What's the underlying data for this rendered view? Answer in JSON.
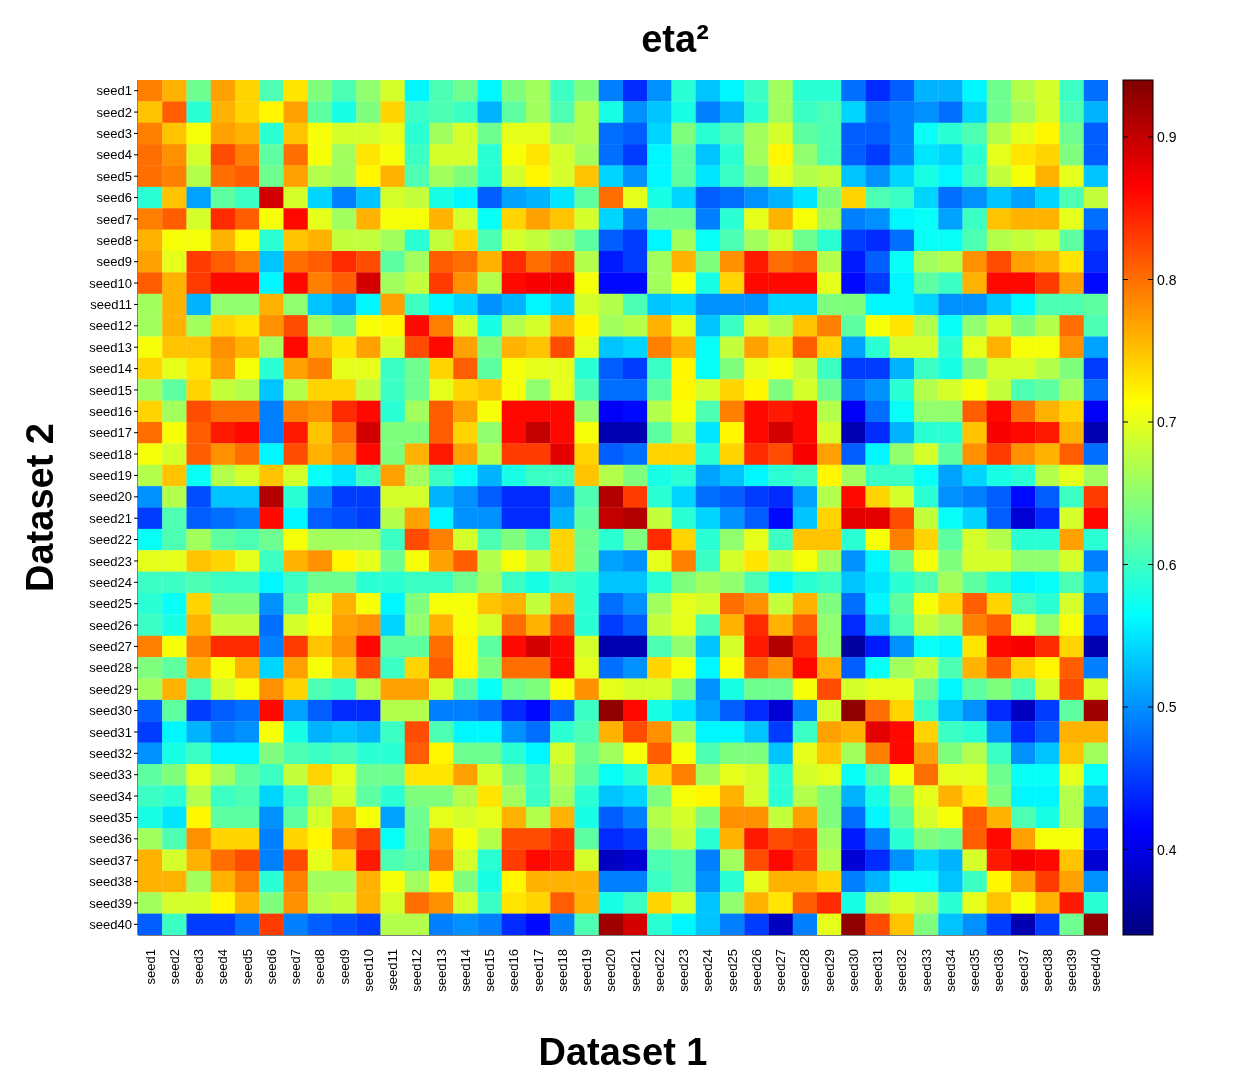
{
  "chart_data": {
    "type": "heatmap",
    "title": "eta²",
    "xlabel": "Dataset 1",
    "ylabel": "Dataset 2",
    "categories": [
      "seed1",
      "seed2",
      "seed3",
      "seed4",
      "seed5",
      "seed6",
      "seed7",
      "seed8",
      "seed9",
      "seed10",
      "seed11",
      "seed12",
      "seed13",
      "seed14",
      "seed15",
      "seed16",
      "seed17",
      "seed18",
      "seed19",
      "seed20",
      "seed21",
      "seed22",
      "seed23",
      "seed24",
      "seed25",
      "seed26",
      "seed27",
      "seed28",
      "seed29",
      "seed30",
      "seed31",
      "seed32",
      "seed33",
      "seed34",
      "seed35",
      "seed36",
      "seed37",
      "seed38",
      "seed39",
      "seed40"
    ],
    "y_categories": [
      "seed1",
      "seed2",
      "seed3",
      "seed4",
      "seed5",
      "seed6",
      "seed7",
      "seed8",
      "seed9",
      "seed10",
      "seed11",
      "seed12",
      "seed13",
      "seed14",
      "seed15",
      "seed16",
      "seed17",
      "seed18",
      "seed19",
      "seed20",
      "seed21",
      "seed22",
      "seed23",
      "seed24",
      "seed25",
      "seed26",
      "seed27",
      "seed28",
      "seed29",
      "seed30",
      "seed31",
      "seed32",
      "seed33",
      "seed34",
      "seed35",
      "seed36",
      "seed37",
      "seed38",
      "seed39",
      "seed40"
    ],
    "cells": [
      [
        0.79,
        0.76,
        0.63,
        0.77,
        0.74,
        0.61,
        0.73,
        0.64,
        0.61,
        0.65,
        0.69,
        0.56,
        0.61,
        0.63,
        0.56,
        0.64,
        0.66,
        0.6,
        0.64,
        0.49,
        0.44,
        0.5,
        0.59,
        0.53,
        0.56,
        0.6,
        0.66,
        0.59,
        0.59,
        0.48,
        0.44,
        0.47,
        0.52,
        0.52,
        0.56,
        0.63,
        0.67,
        0.69,
        0.6,
        0.48
      ],
      [
        0.75,
        0.81,
        0.59,
        0.76,
        0.74,
        0.72,
        0.77,
        0.62,
        0.58,
        0.64,
        0.74,
        0.6,
        0.61,
        0.6,
        0.52,
        0.62,
        0.66,
        0.61,
        0.67,
        0.58,
        0.5,
        0.53,
        0.58,
        0.49,
        0.52,
        0.59,
        0.66,
        0.6,
        0.61,
        0.54,
        0.48,
        0.49,
        0.5,
        0.48,
        0.54,
        0.63,
        0.66,
        0.69,
        0.61,
        0.52
      ],
      [
        0.79,
        0.75,
        0.71,
        0.77,
        0.76,
        0.59,
        0.75,
        0.71,
        0.69,
        0.69,
        0.7,
        0.59,
        0.66,
        0.69,
        0.63,
        0.7,
        0.7,
        0.66,
        0.67,
        0.48,
        0.47,
        0.54,
        0.64,
        0.59,
        0.61,
        0.66,
        0.69,
        0.62,
        0.61,
        0.47,
        0.47,
        0.49,
        0.57,
        0.59,
        0.61,
        0.67,
        0.7,
        0.72,
        0.63,
        0.47
      ],
      [
        0.8,
        0.78,
        0.69,
        0.82,
        0.79,
        0.62,
        0.8,
        0.71,
        0.66,
        0.73,
        0.71,
        0.6,
        0.69,
        0.69,
        0.59,
        0.71,
        0.73,
        0.69,
        0.66,
        0.48,
        0.45,
        0.56,
        0.62,
        0.53,
        0.59,
        0.66,
        0.72,
        0.65,
        0.61,
        0.47,
        0.45,
        0.49,
        0.55,
        0.54,
        0.59,
        0.7,
        0.73,
        0.74,
        0.64,
        0.47
      ],
      [
        0.8,
        0.79,
        0.67,
        0.8,
        0.81,
        0.63,
        0.77,
        0.67,
        0.66,
        0.72,
        0.76,
        0.61,
        0.66,
        0.64,
        0.59,
        0.69,
        0.72,
        0.69,
        0.75,
        0.54,
        0.5,
        0.56,
        0.62,
        0.55,
        0.6,
        0.64,
        0.7,
        0.67,
        0.68,
        0.53,
        0.5,
        0.54,
        0.58,
        0.56,
        0.6,
        0.68,
        0.71,
        0.76,
        0.7,
        0.53
      ],
      [
        0.59,
        0.75,
        0.51,
        0.62,
        0.6,
        0.89,
        0.69,
        0.54,
        0.49,
        0.53,
        0.69,
        0.68,
        0.58,
        0.56,
        0.47,
        0.51,
        0.52,
        0.55,
        0.62,
        0.8,
        0.7,
        0.58,
        0.54,
        0.47,
        0.48,
        0.5,
        0.52,
        0.55,
        0.64,
        0.74,
        0.61,
        0.6,
        0.54,
        0.48,
        0.5,
        0.53,
        0.51,
        0.54,
        0.61,
        0.68
      ],
      [
        0.79,
        0.81,
        0.69,
        0.84,
        0.81,
        0.71,
        0.86,
        0.7,
        0.66,
        0.76,
        0.71,
        0.71,
        0.76,
        0.69,
        0.57,
        0.74,
        0.77,
        0.75,
        0.69,
        0.54,
        0.49,
        0.63,
        0.63,
        0.49,
        0.59,
        0.7,
        0.76,
        0.71,
        0.66,
        0.49,
        0.5,
        0.56,
        0.57,
        0.51,
        0.6,
        0.75,
        0.76,
        0.76,
        0.7,
        0.48
      ],
      [
        0.76,
        0.71,
        0.71,
        0.76,
        0.72,
        0.59,
        0.75,
        0.76,
        0.68,
        0.68,
        0.66,
        0.59,
        0.68,
        0.74,
        0.61,
        0.69,
        0.68,
        0.66,
        0.62,
        0.47,
        0.45,
        0.56,
        0.66,
        0.57,
        0.61,
        0.66,
        0.69,
        0.63,
        0.59,
        0.45,
        0.44,
        0.48,
        0.57,
        0.57,
        0.61,
        0.67,
        0.68,
        0.69,
        0.62,
        0.45
      ],
      [
        0.77,
        0.7,
        0.83,
        0.81,
        0.79,
        0.53,
        0.8,
        0.81,
        0.84,
        0.82,
        0.62,
        0.66,
        0.81,
        0.8,
        0.76,
        0.84,
        0.8,
        0.82,
        0.67,
        0.43,
        0.45,
        0.66,
        0.76,
        0.64,
        0.78,
        0.85,
        0.8,
        0.81,
        0.67,
        0.43,
        0.47,
        0.57,
        0.66,
        0.67,
        0.78,
        0.82,
        0.77,
        0.76,
        0.73,
        0.44
      ],
      [
        0.81,
        0.76,
        0.83,
        0.86,
        0.86,
        0.56,
        0.86,
        0.79,
        0.81,
        0.89,
        0.66,
        0.68,
        0.83,
        0.78,
        0.67,
        0.86,
        0.87,
        0.87,
        0.71,
        0.42,
        0.42,
        0.66,
        0.71,
        0.58,
        0.74,
        0.86,
        0.86,
        0.86,
        0.7,
        0.42,
        0.45,
        0.56,
        0.62,
        0.6,
        0.76,
        0.86,
        0.86,
        0.83,
        0.77,
        0.42
      ],
      [
        0.66,
        0.76,
        0.52,
        0.65,
        0.65,
        0.76,
        0.65,
        0.53,
        0.51,
        0.56,
        0.77,
        0.6,
        0.56,
        0.54,
        0.5,
        0.52,
        0.56,
        0.54,
        0.69,
        0.67,
        0.61,
        0.53,
        0.54,
        0.5,
        0.5,
        0.5,
        0.54,
        0.54,
        0.64,
        0.64,
        0.56,
        0.56,
        0.54,
        0.5,
        0.5,
        0.53,
        0.56,
        0.61,
        0.61,
        0.62
      ],
      [
        0.66,
        0.76,
        0.66,
        0.74,
        0.73,
        0.78,
        0.82,
        0.66,
        0.64,
        0.71,
        0.72,
        0.86,
        0.79,
        0.69,
        0.58,
        0.67,
        0.69,
        0.76,
        0.72,
        0.66,
        0.67,
        0.76,
        0.7,
        0.53,
        0.6,
        0.69,
        0.67,
        0.75,
        0.79,
        0.62,
        0.71,
        0.73,
        0.67,
        0.57,
        0.65,
        0.69,
        0.64,
        0.67,
        0.8,
        0.61
      ],
      [
        0.71,
        0.75,
        0.75,
        0.78,
        0.76,
        0.66,
        0.86,
        0.76,
        0.73,
        0.77,
        0.69,
        0.82,
        0.86,
        0.77,
        0.64,
        0.76,
        0.75,
        0.82,
        0.7,
        0.53,
        0.54,
        0.79,
        0.76,
        0.57,
        0.68,
        0.77,
        0.74,
        0.81,
        0.74,
        0.51,
        0.59,
        0.69,
        0.69,
        0.59,
        0.7,
        0.76,
        0.71,
        0.71,
        0.78,
        0.51
      ],
      [
        0.74,
        0.7,
        0.73,
        0.77,
        0.71,
        0.59,
        0.77,
        0.79,
        0.7,
        0.7,
        0.6,
        0.63,
        0.74,
        0.81,
        0.62,
        0.71,
        0.7,
        0.7,
        0.59,
        0.47,
        0.45,
        0.6,
        0.72,
        0.57,
        0.64,
        0.7,
        0.71,
        0.68,
        0.6,
        0.45,
        0.45,
        0.52,
        0.6,
        0.58,
        0.64,
        0.69,
        0.69,
        0.67,
        0.64,
        0.45
      ],
      [
        0.66,
        0.62,
        0.74,
        0.68,
        0.67,
        0.53,
        0.67,
        0.74,
        0.74,
        0.68,
        0.6,
        0.63,
        0.7,
        0.74,
        0.75,
        0.71,
        0.65,
        0.7,
        0.61,
        0.48,
        0.48,
        0.62,
        0.72,
        0.69,
        0.74,
        0.72,
        0.64,
        0.69,
        0.63,
        0.48,
        0.5,
        0.59,
        0.67,
        0.69,
        0.71,
        0.68,
        0.61,
        0.62,
        0.66,
        0.48
      ],
      [
        0.74,
        0.66,
        0.82,
        0.8,
        0.8,
        0.49,
        0.79,
        0.78,
        0.84,
        0.86,
        0.59,
        0.66,
        0.81,
        0.77,
        0.71,
        0.86,
        0.86,
        0.86,
        0.65,
        0.41,
        0.42,
        0.67,
        0.71,
        0.61,
        0.79,
        0.86,
        0.85,
        0.86,
        0.67,
        0.41,
        0.48,
        0.57,
        0.65,
        0.65,
        0.81,
        0.86,
        0.8,
        0.76,
        0.74,
        0.41
      ],
      [
        0.8,
        0.71,
        0.81,
        0.85,
        0.86,
        0.49,
        0.85,
        0.75,
        0.8,
        0.89,
        0.64,
        0.64,
        0.81,
        0.74,
        0.65,
        0.86,
        0.9,
        0.86,
        0.71,
        0.37,
        0.37,
        0.62,
        0.68,
        0.55,
        0.72,
        0.86,
        0.89,
        0.86,
        0.69,
        0.37,
        0.44,
        0.52,
        0.59,
        0.59,
        0.75,
        0.87,
        0.86,
        0.85,
        0.76,
        0.37
      ],
      [
        0.71,
        0.69,
        0.81,
        0.78,
        0.8,
        0.56,
        0.82,
        0.76,
        0.78,
        0.86,
        0.64,
        0.76,
        0.85,
        0.77,
        0.67,
        0.83,
        0.83,
        0.88,
        0.74,
        0.47,
        0.48,
        0.74,
        0.74,
        0.59,
        0.74,
        0.84,
        0.82,
        0.87,
        0.77,
        0.47,
        0.56,
        0.65,
        0.69,
        0.62,
        0.78,
        0.83,
        0.78,
        0.76,
        0.81,
        0.48
      ],
      [
        0.67,
        0.75,
        0.57,
        0.67,
        0.69,
        0.75,
        0.69,
        0.57,
        0.55,
        0.6,
        0.77,
        0.66,
        0.6,
        0.57,
        0.52,
        0.58,
        0.6,
        0.6,
        0.75,
        0.67,
        0.64,
        0.58,
        0.59,
        0.51,
        0.53,
        0.56,
        0.59,
        0.6,
        0.72,
        0.66,
        0.6,
        0.6,
        0.57,
        0.51,
        0.54,
        0.58,
        0.59,
        0.67,
        0.7,
        0.66
      ],
      [
        0.5,
        0.67,
        0.46,
        0.53,
        0.53,
        0.91,
        0.59,
        0.49,
        0.45,
        0.45,
        0.69,
        0.69,
        0.52,
        0.5,
        0.47,
        0.44,
        0.44,
        0.5,
        0.61,
        0.91,
        0.83,
        0.59,
        0.54,
        0.48,
        0.47,
        0.45,
        0.44,
        0.51,
        0.67,
        0.86,
        0.74,
        0.69,
        0.59,
        0.5,
        0.49,
        0.47,
        0.42,
        0.47,
        0.6,
        0.83
      ],
      [
        0.45,
        0.61,
        0.47,
        0.48,
        0.49,
        0.86,
        0.56,
        0.47,
        0.46,
        0.45,
        0.67,
        0.77,
        0.56,
        0.5,
        0.5,
        0.44,
        0.44,
        0.52,
        0.62,
        0.9,
        0.91,
        0.68,
        0.59,
        0.54,
        0.5,
        0.47,
        0.42,
        0.53,
        0.74,
        0.88,
        0.88,
        0.82,
        0.68,
        0.57,
        0.54,
        0.47,
        0.39,
        0.44,
        0.69,
        0.86
      ],
      [
        0.57,
        0.61,
        0.66,
        0.62,
        0.61,
        0.63,
        0.71,
        0.66,
        0.66,
        0.66,
        0.6,
        0.82,
        0.79,
        0.69,
        0.61,
        0.64,
        0.61,
        0.74,
        0.63,
        0.59,
        0.64,
        0.84,
        0.74,
        0.59,
        0.65,
        0.7,
        0.6,
        0.75,
        0.75,
        0.59,
        0.71,
        0.79,
        0.74,
        0.62,
        0.69,
        0.67,
        0.59,
        0.59,
        0.77,
        0.59
      ],
      [
        0.7,
        0.7,
        0.75,
        0.74,
        0.7,
        0.6,
        0.76,
        0.78,
        0.72,
        0.7,
        0.63,
        0.71,
        0.77,
        0.81,
        0.67,
        0.71,
        0.68,
        0.74,
        0.63,
        0.51,
        0.5,
        0.7,
        0.79,
        0.6,
        0.69,
        0.73,
        0.68,
        0.71,
        0.66,
        0.5,
        0.56,
        0.63,
        0.71,
        0.64,
        0.69,
        0.69,
        0.65,
        0.65,
        0.69,
        0.49
      ],
      [
        0.6,
        0.6,
        0.61,
        0.6,
        0.6,
        0.56,
        0.6,
        0.63,
        0.63,
        0.59,
        0.59,
        0.6,
        0.6,
        0.63,
        0.66,
        0.6,
        0.58,
        0.6,
        0.59,
        0.53,
        0.53,
        0.59,
        0.64,
        0.66,
        0.65,
        0.61,
        0.56,
        0.59,
        0.6,
        0.53,
        0.55,
        0.59,
        0.61,
        0.66,
        0.62,
        0.59,
        0.56,
        0.57,
        0.61,
        0.53
      ],
      [
        0.59,
        0.57,
        0.74,
        0.64,
        0.64,
        0.5,
        0.62,
        0.7,
        0.76,
        0.71,
        0.56,
        0.64,
        0.71,
        0.71,
        0.75,
        0.76,
        0.68,
        0.76,
        0.59,
        0.48,
        0.5,
        0.66,
        0.7,
        0.69,
        0.8,
        0.78,
        0.68,
        0.76,
        0.64,
        0.48,
        0.56,
        0.62,
        0.71,
        0.74,
        0.81,
        0.74,
        0.61,
        0.59,
        0.69,
        0.48
      ],
      [
        0.6,
        0.58,
        0.76,
        0.68,
        0.68,
        0.48,
        0.69,
        0.71,
        0.77,
        0.78,
        0.54,
        0.65,
        0.76,
        0.71,
        0.69,
        0.8,
        0.76,
        0.82,
        0.59,
        0.45,
        0.47,
        0.68,
        0.7,
        0.61,
        0.76,
        0.84,
        0.76,
        0.81,
        0.65,
        0.44,
        0.53,
        0.61,
        0.68,
        0.66,
        0.79,
        0.81,
        0.7,
        0.65,
        0.71,
        0.45
      ],
      [
        0.79,
        0.71,
        0.79,
        0.84,
        0.84,
        0.49,
        0.83,
        0.75,
        0.78,
        0.86,
        0.62,
        0.62,
        0.8,
        0.72,
        0.62,
        0.86,
        0.89,
        0.86,
        0.69,
        0.37,
        0.37,
        0.61,
        0.65,
        0.53,
        0.69,
        0.85,
        0.91,
        0.84,
        0.65,
        0.36,
        0.43,
        0.5,
        0.57,
        0.56,
        0.73,
        0.86,
        0.87,
        0.84,
        0.74,
        0.37
      ],
      [
        0.64,
        0.62,
        0.76,
        0.71,
        0.76,
        0.54,
        0.77,
        0.71,
        0.75,
        0.82,
        0.6,
        0.74,
        0.81,
        0.72,
        0.64,
        0.8,
        0.8,
        0.86,
        0.7,
        0.48,
        0.5,
        0.74,
        0.71,
        0.56,
        0.71,
        0.81,
        0.78,
        0.86,
        0.76,
        0.47,
        0.57,
        0.66,
        0.68,
        0.61,
        0.76,
        0.81,
        0.74,
        0.72,
        0.81,
        0.49
      ],
      [
        0.66,
        0.76,
        0.61,
        0.69,
        0.71,
        0.78,
        0.74,
        0.61,
        0.6,
        0.67,
        0.77,
        0.77,
        0.69,
        0.62,
        0.57,
        0.63,
        0.64,
        0.71,
        0.78,
        0.7,
        0.69,
        0.69,
        0.64,
        0.5,
        0.58,
        0.63,
        0.63,
        0.71,
        0.82,
        0.69,
        0.7,
        0.7,
        0.63,
        0.56,
        0.62,
        0.64,
        0.61,
        0.69,
        0.82,
        0.69
      ],
      [
        0.47,
        0.62,
        0.45,
        0.47,
        0.48,
        0.86,
        0.51,
        0.47,
        0.44,
        0.44,
        0.67,
        0.67,
        0.49,
        0.49,
        0.48,
        0.44,
        0.42,
        0.47,
        0.6,
        0.93,
        0.86,
        0.58,
        0.55,
        0.51,
        0.47,
        0.44,
        0.39,
        0.49,
        0.69,
        0.93,
        0.8,
        0.74,
        0.6,
        0.53,
        0.5,
        0.44,
        0.38,
        0.45,
        0.62,
        0.92
      ],
      [
        0.45,
        0.56,
        0.52,
        0.49,
        0.5,
        0.71,
        0.58,
        0.52,
        0.53,
        0.52,
        0.6,
        0.82,
        0.61,
        0.56,
        0.56,
        0.5,
        0.48,
        0.59,
        0.61,
        0.76,
        0.82,
        0.78,
        0.66,
        0.56,
        0.56,
        0.53,
        0.45,
        0.6,
        0.77,
        0.76,
        0.88,
        0.86,
        0.74,
        0.6,
        0.59,
        0.5,
        0.44,
        0.47,
        0.76,
        0.76
      ],
      [
        0.5,
        0.58,
        0.6,
        0.56,
        0.56,
        0.64,
        0.61,
        0.6,
        0.61,
        0.59,
        0.59,
        0.81,
        0.72,
        0.63,
        0.63,
        0.59,
        0.56,
        0.69,
        0.63,
        0.66,
        0.71,
        0.81,
        0.71,
        0.61,
        0.64,
        0.64,
        0.53,
        0.7,
        0.75,
        0.66,
        0.79,
        0.86,
        0.77,
        0.64,
        0.67,
        0.6,
        0.5,
        0.53,
        0.75,
        0.66
      ],
      [
        0.62,
        0.64,
        0.7,
        0.66,
        0.62,
        0.6,
        0.68,
        0.74,
        0.7,
        0.63,
        0.63,
        0.73,
        0.73,
        0.77,
        0.69,
        0.64,
        0.6,
        0.67,
        0.62,
        0.57,
        0.59,
        0.74,
        0.79,
        0.66,
        0.7,
        0.69,
        0.59,
        0.69,
        0.7,
        0.57,
        0.62,
        0.71,
        0.8,
        0.7,
        0.7,
        0.63,
        0.57,
        0.57,
        0.7,
        0.57
      ],
      [
        0.6,
        0.59,
        0.67,
        0.6,
        0.61,
        0.54,
        0.6,
        0.66,
        0.69,
        0.62,
        0.59,
        0.64,
        0.64,
        0.67,
        0.73,
        0.66,
        0.6,
        0.66,
        0.59,
        0.53,
        0.54,
        0.64,
        0.71,
        0.72,
        0.76,
        0.69,
        0.59,
        0.67,
        0.64,
        0.52,
        0.58,
        0.64,
        0.7,
        0.76,
        0.73,
        0.64,
        0.56,
        0.56,
        0.67,
        0.53
      ],
      [
        0.58,
        0.55,
        0.72,
        0.62,
        0.62,
        0.5,
        0.62,
        0.69,
        0.76,
        0.71,
        0.51,
        0.63,
        0.7,
        0.69,
        0.7,
        0.76,
        0.67,
        0.76,
        0.58,
        0.47,
        0.49,
        0.67,
        0.69,
        0.64,
        0.78,
        0.78,
        0.68,
        0.77,
        0.64,
        0.48,
        0.56,
        0.62,
        0.69,
        0.71,
        0.81,
        0.76,
        0.61,
        0.58,
        0.67,
        0.48
      ],
      [
        0.66,
        0.61,
        0.78,
        0.74,
        0.74,
        0.49,
        0.74,
        0.72,
        0.79,
        0.83,
        0.57,
        0.63,
        0.77,
        0.71,
        0.67,
        0.82,
        0.82,
        0.84,
        0.62,
        0.44,
        0.45,
        0.65,
        0.68,
        0.59,
        0.76,
        0.85,
        0.82,
        0.83,
        0.66,
        0.43,
        0.49,
        0.59,
        0.64,
        0.63,
        0.81,
        0.86,
        0.77,
        0.71,
        0.71,
        0.43
      ],
      [
        0.76,
        0.69,
        0.76,
        0.8,
        0.82,
        0.49,
        0.82,
        0.7,
        0.74,
        0.85,
        0.61,
        0.62,
        0.79,
        0.69,
        0.59,
        0.83,
        0.86,
        0.85,
        0.69,
        0.38,
        0.39,
        0.61,
        0.62,
        0.49,
        0.66,
        0.82,
        0.86,
        0.83,
        0.67,
        0.39,
        0.44,
        0.5,
        0.54,
        0.52,
        0.69,
        0.85,
        0.87,
        0.86,
        0.75,
        0.39
      ],
      [
        0.76,
        0.76,
        0.66,
        0.76,
        0.79,
        0.59,
        0.79,
        0.66,
        0.66,
        0.76,
        0.71,
        0.66,
        0.72,
        0.64,
        0.58,
        0.72,
        0.76,
        0.76,
        0.76,
        0.49,
        0.49,
        0.6,
        0.62,
        0.5,
        0.59,
        0.7,
        0.76,
        0.76,
        0.74,
        0.49,
        0.52,
        0.57,
        0.57,
        0.53,
        0.6,
        0.72,
        0.77,
        0.83,
        0.77,
        0.5
      ],
      [
        0.66,
        0.69,
        0.69,
        0.72,
        0.76,
        0.64,
        0.78,
        0.67,
        0.68,
        0.76,
        0.69,
        0.8,
        0.78,
        0.69,
        0.6,
        0.73,
        0.74,
        0.81,
        0.76,
        0.58,
        0.6,
        0.74,
        0.69,
        0.53,
        0.65,
        0.76,
        0.73,
        0.81,
        0.84,
        0.58,
        0.67,
        0.69,
        0.67,
        0.59,
        0.7,
        0.75,
        0.71,
        0.76,
        0.85,
        0.59
      ],
      [
        0.47,
        0.6,
        0.45,
        0.45,
        0.48,
        0.83,
        0.49,
        0.47,
        0.46,
        0.45,
        0.67,
        0.67,
        0.49,
        0.5,
        0.49,
        0.44,
        0.42,
        0.49,
        0.61,
        0.92,
        0.89,
        0.59,
        0.56,
        0.53,
        0.49,
        0.45,
        0.38,
        0.49,
        0.7,
        0.93,
        0.82,
        0.75,
        0.64,
        0.53,
        0.5,
        0.45,
        0.37,
        0.45,
        0.63,
        0.93
      ]
    ],
    "clim": [
      0.34,
      0.94
    ],
    "cticks": [
      0.4,
      0.5,
      0.6,
      0.7,
      0.8,
      0.9
    ]
  }
}
